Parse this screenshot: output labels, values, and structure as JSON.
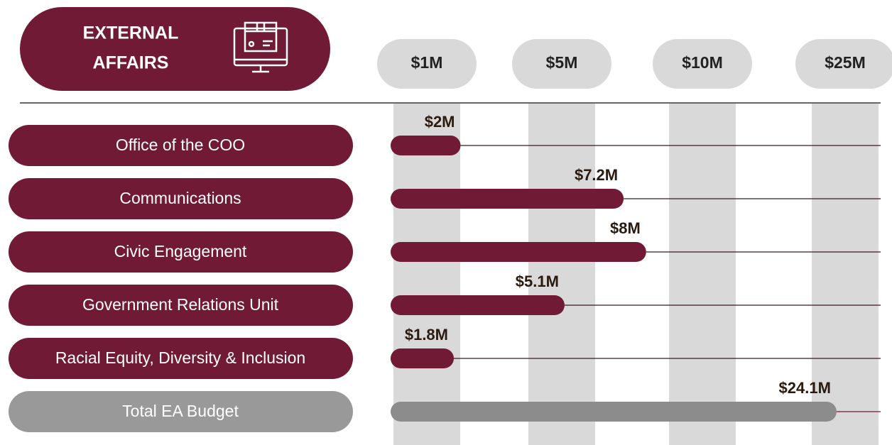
{
  "chart_data": {
    "type": "bar",
    "orientation": "horizontal",
    "title": [
      "EXTERNAL",
      "AFFAIRS"
    ],
    "categories": [
      "Office of the COO",
      "Communications",
      "Civic Engagement",
      "Government Relations Unit",
      "Racial Equity, Diversity & Inclusion",
      "Total EA Budget"
    ],
    "values": [
      2,
      7.2,
      8,
      5.1,
      1.8,
      24.1
    ],
    "value_labels": [
      "$2M",
      "$7.2M",
      "$8M",
      "$5.1M",
      "$1.8M",
      "$24.1M"
    ],
    "colors": [
      "#701a35",
      "#701a35",
      "#701a35",
      "#701a35",
      "#701a35",
      "#8c8c8c"
    ],
    "xlim": [
      0,
      25
    ],
    "xticks": [
      {
        "value": 1,
        "label": "$1M"
      },
      {
        "value": 5,
        "label": "$5M"
      },
      {
        "value": 10,
        "label": "$10M"
      },
      {
        "value": 25,
        "label": "$25M"
      }
    ]
  }
}
